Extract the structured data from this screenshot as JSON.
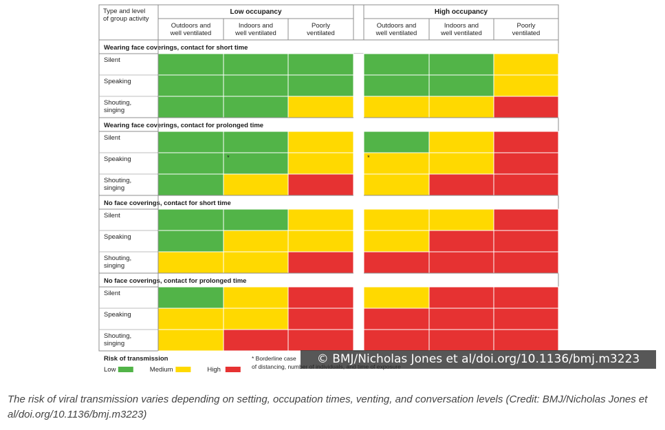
{
  "chart_data": {
    "type": "heatmap",
    "corner_label": [
      "Type and level",
      "of group activity"
    ],
    "groups": [
      {
        "label": "Low occupancy",
        "settings": [
          [
            "Outdoors and",
            "well ventilated"
          ],
          [
            "Indoors and",
            "well ventilated"
          ],
          [
            "Poorly",
            "ventilated"
          ]
        ]
      },
      {
        "label": "High occupancy",
        "settings": [
          [
            "Outdoors and",
            "well ventilated"
          ],
          [
            "Indoors and",
            "well ventilated"
          ],
          [
            "Poorly",
            "ventilated"
          ]
        ]
      }
    ],
    "sections": [
      {
        "label": "Wearing face coverings, contact for short time",
        "rows": [
          {
            "label": [
              "Silent"
            ],
            "risk": [
              "low",
              "low",
              "low",
              "low",
              "low",
              "medium"
            ]
          },
          {
            "label": [
              "Speaking"
            ],
            "risk": [
              "low",
              "low",
              "low",
              "low",
              "low",
              "medium"
            ]
          },
          {
            "label": [
              "Shouting,",
              "singing"
            ],
            "risk": [
              "low",
              "low",
              "medium",
              "medium",
              "medium",
              "high"
            ]
          }
        ]
      },
      {
        "label": "Wearing face coverings, contact for prolonged time",
        "rows": [
          {
            "label": [
              "Silent"
            ],
            "risk": [
              "low",
              "low",
              "medium",
              "low",
              "medium",
              "high"
            ]
          },
          {
            "label": [
              "Speaking"
            ],
            "risk": [
              "low",
              "low",
              "medium",
              "medium",
              "medium",
              "high"
            ],
            "borderline": [
              1,
              3
            ]
          },
          {
            "label": [
              "Shouting,",
              "singing"
            ],
            "risk": [
              "low",
              "medium",
              "high",
              "medium",
              "high",
              "high"
            ]
          }
        ]
      },
      {
        "label": "No face coverings, contact for short time",
        "rows": [
          {
            "label": [
              "Silent"
            ],
            "risk": [
              "low",
              "low",
              "medium",
              "medium",
              "medium",
              "high"
            ]
          },
          {
            "label": [
              "Speaking"
            ],
            "risk": [
              "low",
              "medium",
              "medium",
              "medium",
              "high",
              "high"
            ]
          },
          {
            "label": [
              "Shouting,",
              "singing"
            ],
            "risk": [
              "medium",
              "medium",
              "high",
              "high",
              "high",
              "high"
            ]
          }
        ]
      },
      {
        "label": "No face coverings, contact for prolonged time",
        "rows": [
          {
            "label": [
              "Silent"
            ],
            "risk": [
              "low",
              "medium",
              "high",
              "medium",
              "high",
              "high"
            ]
          },
          {
            "label": [
              "Speaking"
            ],
            "risk": [
              "medium",
              "medium",
              "high",
              "high",
              "high",
              "high"
            ]
          },
          {
            "label": [
              "Shouting,",
              "singing"
            ],
            "risk": [
              "medium",
              "high",
              "high",
              "high",
              "high",
              "high"
            ]
          }
        ]
      }
    ],
    "legend": {
      "title": "Risk of transmission",
      "items": [
        {
          "key": "low",
          "label": "Low",
          "color": "#52b448"
        },
        {
          "key": "medium",
          "label": "Medium",
          "color": "#ffd900"
        },
        {
          "key": "high",
          "label": "High",
          "color": "#e63232"
        }
      ]
    },
    "footnote": [
      "* Borderline case",
      "of distancing, number of individuals, and time of exposure"
    ],
    "borderline_marker": "*"
  },
  "watermark": "© BMJ/Nicholas Jones et al/doi.org/10.1136/bmj.m3223",
  "caption": "The risk of viral transmission varies depending on setting, occupation times, venting, and conversation levels (Credit: BMJ/Nicholas Jones et al/doi.org/10.1136/bmj.m3223)"
}
